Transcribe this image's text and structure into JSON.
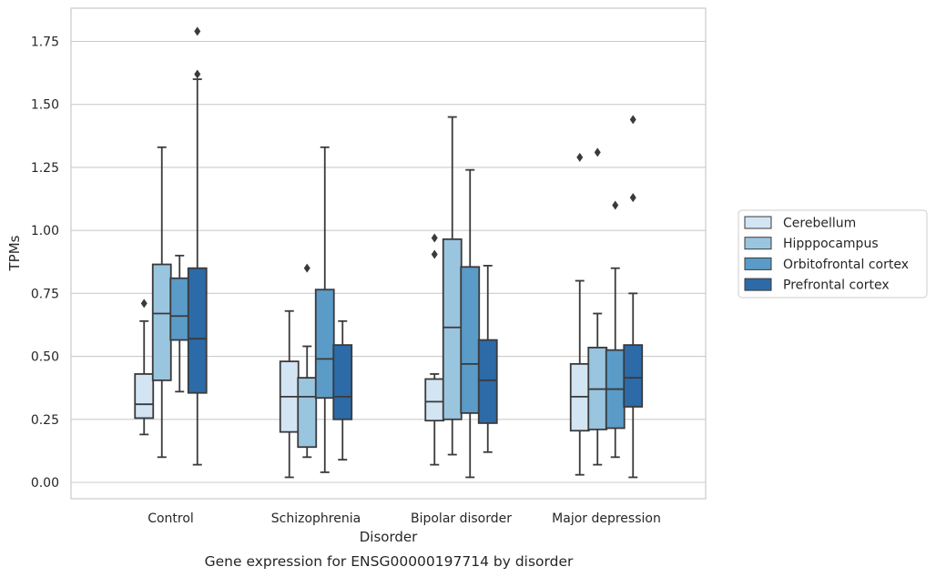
{
  "chart_data": {
    "type": "boxplot",
    "title": "Gene expression for ENSG00000197714 by disorder",
    "xlabel": "Disorder",
    "ylabel": "TPMs",
    "ylim": [
      -0.06,
      1.88
    ],
    "yticks": [
      "0.00",
      "0.25",
      "0.50",
      "0.75",
      "1.00",
      "1.25",
      "1.50",
      "1.75"
    ],
    "grid": true,
    "legend_position": "right",
    "categories": [
      "Control",
      "Schizophrenia",
      "Bipolar disorder",
      "Major depression"
    ],
    "series": [
      {
        "name": "Cerebellum",
        "color": "#d3e4f3",
        "boxes": [
          {
            "whislo": 0.19,
            "q1": 0.255,
            "med": 0.31,
            "q3": 0.43,
            "whishi": 0.64,
            "fliers": [
              0.71
            ]
          },
          {
            "whislo": 0.02,
            "q1": 0.2,
            "med": 0.34,
            "q3": 0.48,
            "whishi": 0.68,
            "fliers": []
          },
          {
            "whislo": 0.07,
            "q1": 0.245,
            "med": 0.32,
            "q3": 0.41,
            "whishi": 0.43,
            "fliers": [
              0.905,
              0.97
            ]
          },
          {
            "whislo": 0.03,
            "q1": 0.205,
            "med": 0.34,
            "q3": 0.47,
            "whishi": 0.8,
            "fliers": [
              1.29
            ]
          }
        ]
      },
      {
        "name": "Hipppocampus",
        "color": "#9ac5df",
        "boxes": [
          {
            "whislo": 0.1,
            "q1": 0.405,
            "med": 0.67,
            "q3": 0.865,
            "whishi": 1.33,
            "fliers": []
          },
          {
            "whislo": 0.1,
            "q1": 0.14,
            "med": 0.34,
            "q3": 0.415,
            "whishi": 0.54,
            "fliers": [
              0.85
            ]
          },
          {
            "whislo": 0.11,
            "q1": 0.25,
            "med": 0.615,
            "q3": 0.965,
            "whishi": 1.45,
            "fliers": []
          },
          {
            "whislo": 0.07,
            "q1": 0.21,
            "med": 0.37,
            "q3": 0.535,
            "whishi": 0.67,
            "fliers": [
              1.31
            ]
          }
        ]
      },
      {
        "name": "Orbitofrontal cortex",
        "color": "#5a9bc8",
        "boxes": [
          {
            "whislo": 0.36,
            "q1": 0.565,
            "med": 0.66,
            "q3": 0.81,
            "whishi": 0.9,
            "fliers": []
          },
          {
            "whislo": 0.04,
            "q1": 0.335,
            "med": 0.49,
            "q3": 0.765,
            "whishi": 1.33,
            "fliers": []
          },
          {
            "whislo": 0.02,
            "q1": 0.275,
            "med": 0.47,
            "q3": 0.855,
            "whishi": 1.24,
            "fliers": []
          },
          {
            "whislo": 0.1,
            "q1": 0.215,
            "med": 0.37,
            "q3": 0.525,
            "whishi": 0.85,
            "fliers": [
              1.1
            ]
          }
        ]
      },
      {
        "name": "Prefrontal cortex",
        "color": "#2d6aa8",
        "boxes": [
          {
            "whislo": 0.07,
            "q1": 0.355,
            "med": 0.57,
            "q3": 0.85,
            "whishi": 1.6,
            "fliers": [
              1.62,
              1.79
            ]
          },
          {
            "whislo": 0.09,
            "q1": 0.25,
            "med": 0.34,
            "q3": 0.545,
            "whishi": 0.64,
            "fliers": []
          },
          {
            "whislo": 0.12,
            "q1": 0.235,
            "med": 0.405,
            "q3": 0.565,
            "whishi": 0.86,
            "fliers": []
          },
          {
            "whislo": 0.02,
            "q1": 0.3,
            "med": 0.415,
            "q3": 0.545,
            "whishi": 0.75,
            "fliers": [
              1.13,
              1.44
            ]
          }
        ]
      }
    ]
  }
}
